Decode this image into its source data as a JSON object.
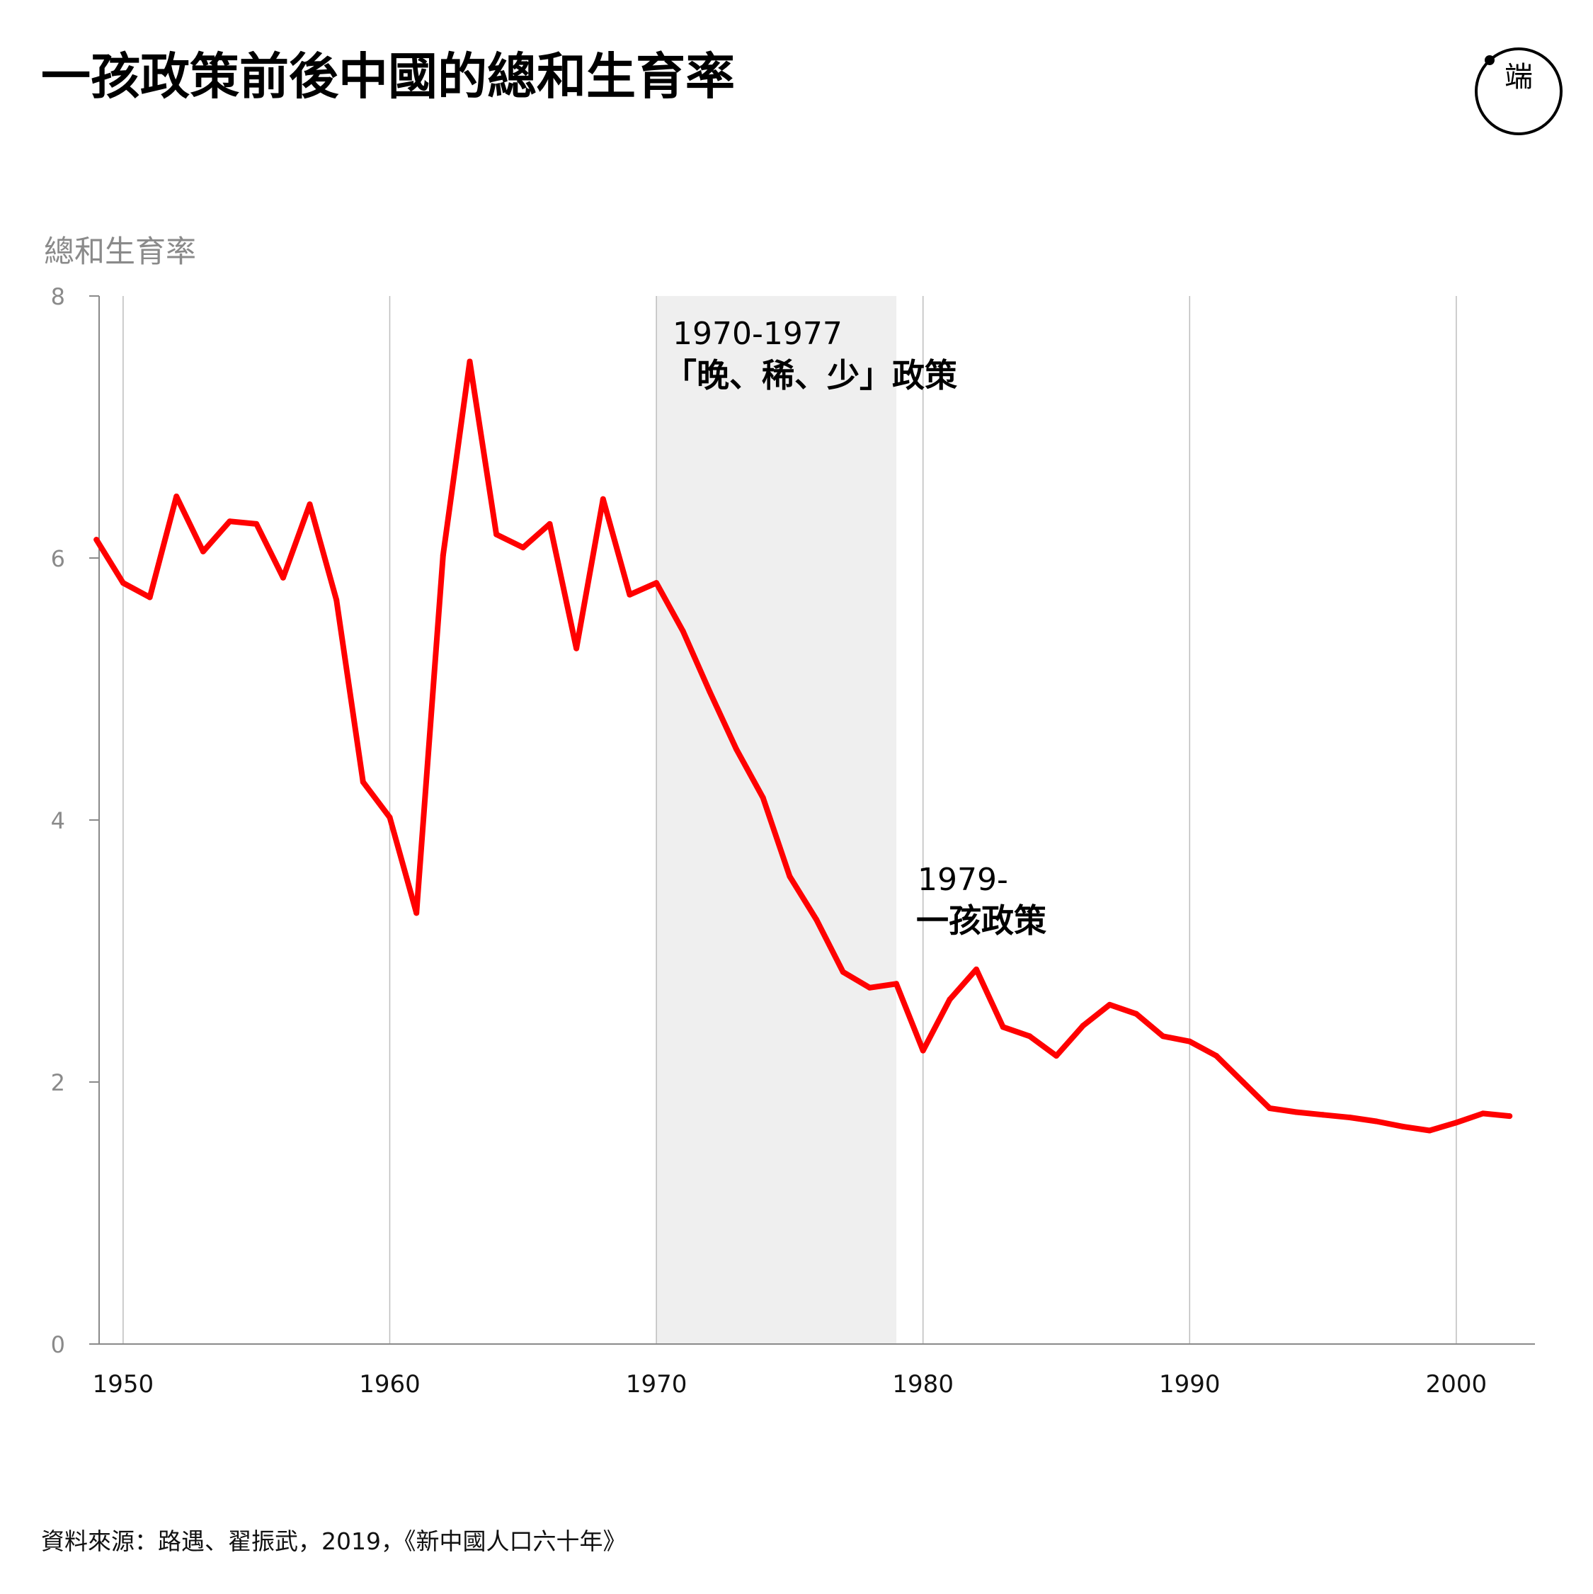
{
  "title": "一孩政策前後中國的總和生育率",
  "source": "資料來源：路遇、翟振武，2019，《新中國人口六十年》",
  "logo": {
    "icon": "initium-logo-icon",
    "text": "端"
  },
  "colors": {
    "line": "#ff0000",
    "shade": "#efefef",
    "grid": "#bdbdbd",
    "axis": "#8a8a8a"
  },
  "chart_data": {
    "type": "line",
    "ylabel": "總和生育率",
    "xlabel": "",
    "ylim": [
      0,
      8
    ],
    "xlim": [
      1950,
      2003
    ],
    "yticks": [
      0,
      2,
      4,
      6,
      8
    ],
    "xticks": [
      1950,
      1960,
      1970,
      1980,
      1990,
      2000
    ],
    "grid": "vertical",
    "series": [
      {
        "x": [
          1949,
          1950,
          1951,
          1952,
          1953,
          1954,
          1955,
          1956,
          1957,
          1958,
          1959,
          1960,
          1961,
          1962,
          1963,
          1964,
          1965,
          1966,
          1967,
          1968,
          1969,
          1970,
          1971,
          1972,
          1973,
          1974,
          1975,
          1976,
          1977,
          1978,
          1979,
          1980,
          1981,
          1982,
          1983,
          1984,
          1985,
          1986,
          1987,
          1988,
          1989,
          1990,
          1991,
          1992,
          1993,
          1994,
          1995,
          1996,
          1997,
          1998,
          1999,
          2000,
          2001,
          2002
        ],
        "values": [
          6.14,
          5.81,
          5.7,
          6.47,
          6.05,
          6.28,
          6.26,
          5.85,
          6.41,
          5.68,
          4.29,
          4.02,
          3.29,
          6.02,
          7.5,
          6.18,
          6.08,
          6.26,
          5.31,
          6.45,
          5.72,
          5.81,
          5.44,
          4.98,
          4.54,
          4.17,
          3.57,
          3.24,
          2.84,
          2.72,
          2.75,
          2.24,
          2.63,
          2.86,
          2.42,
          2.35,
          2.2,
          2.43,
          2.59,
          2.52,
          2.35,
          2.31,
          2.2,
          2.0,
          1.8,
          1.77,
          1.75,
          1.73,
          1.7,
          1.66,
          1.63,
          1.69,
          1.76,
          1.74
        ]
      }
    ],
    "shaded_band": {
      "x_start": 1970,
      "x_end": 1979
    },
    "annotations": [
      {
        "year_text": "1970-1977",
        "label": "「晚、稀、少」政策"
      },
      {
        "year_text": "1979-",
        "label": "一孩政策"
      }
    ]
  }
}
